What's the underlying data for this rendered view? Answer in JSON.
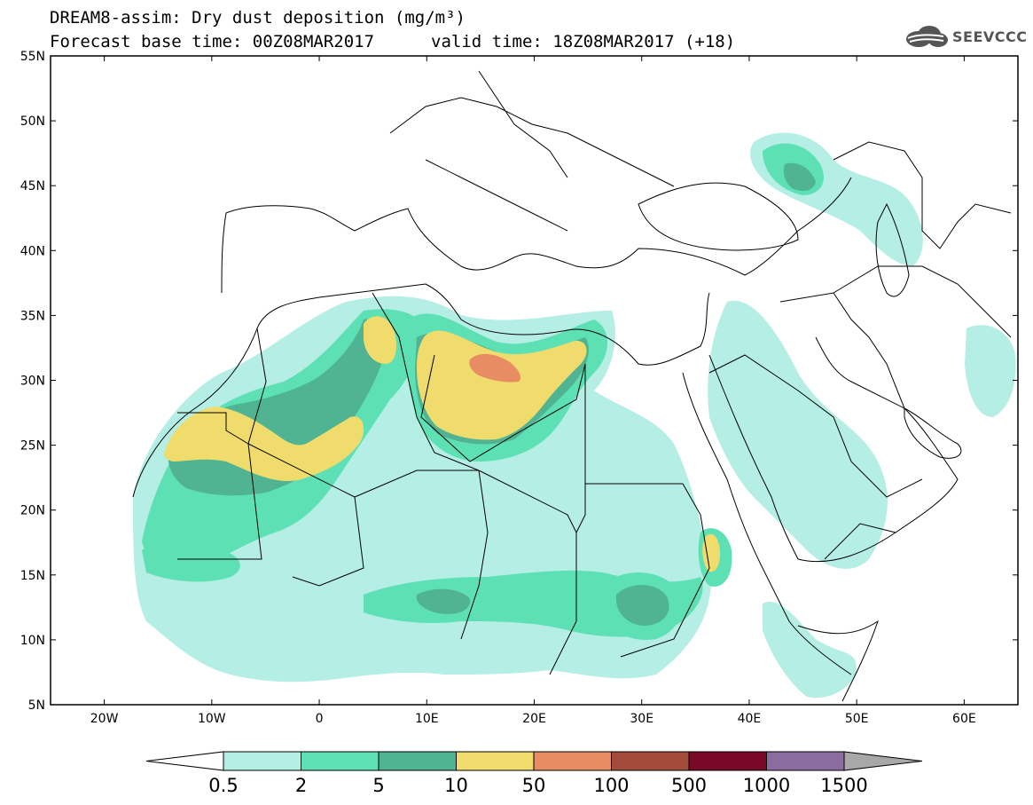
{
  "title": {
    "line1": "DREAM8-assim: Dry dust deposition (mg/m³)",
    "line2": "Forecast base time: 00Z08MAR2017",
    "valid": "valid time: 18Z08MAR2017 (+18)"
  },
  "logo": {
    "text": "SEEVCCC",
    "icon": "cloud-logo-icon"
  },
  "map": {
    "lon_range": [
      -25,
      65
    ],
    "lat_range": [
      5,
      55
    ],
    "lat_ticks": [
      {
        "value": 55,
        "label": "55N"
      },
      {
        "value": 50,
        "label": "50N"
      },
      {
        "value": 45,
        "label": "45N"
      },
      {
        "value": 40,
        "label": "40N"
      },
      {
        "value": 35,
        "label": "35N"
      },
      {
        "value": 30,
        "label": "30N"
      },
      {
        "value": 25,
        "label": "25N"
      },
      {
        "value": 20,
        "label": "20N"
      },
      {
        "value": 15,
        "label": "15N"
      },
      {
        "value": 10,
        "label": "10N"
      },
      {
        "value": 5,
        "label": "5N"
      }
    ],
    "lon_ticks": [
      {
        "value": -20,
        "label": "20W"
      },
      {
        "value": -10,
        "label": "10W"
      },
      {
        "value": 0,
        "label": "0"
      },
      {
        "value": 10,
        "label": "10E"
      },
      {
        "value": 20,
        "label": "20E"
      },
      {
        "value": 30,
        "label": "30E"
      },
      {
        "value": 40,
        "label": "40E"
      },
      {
        "value": 50,
        "label": "50E"
      },
      {
        "value": 60,
        "label": "60E"
      }
    ],
    "colors": {
      "c1": "#b4eee4",
      "c2": "#5ce0b4",
      "c3": "#50b492",
      "c4": "#f0dc6c",
      "c5": "#e88c64",
      "c6": "#a44c3c",
      "c7": "#780a28",
      "c8": "#8c6ca0"
    }
  },
  "colorbar": {
    "levels": [
      "0.5",
      "2",
      "5",
      "10",
      "50",
      "100",
      "500",
      "1000",
      "1500"
    ],
    "colors": [
      "#b4eee4",
      "#5ce0b4",
      "#50b492",
      "#f0dc6c",
      "#e88c64",
      "#a44c3c",
      "#780a28",
      "#8c6ca0",
      "#a8a8a8"
    ],
    "under_color": "#ffffff",
    "over_color": "#a8a8a8"
  }
}
